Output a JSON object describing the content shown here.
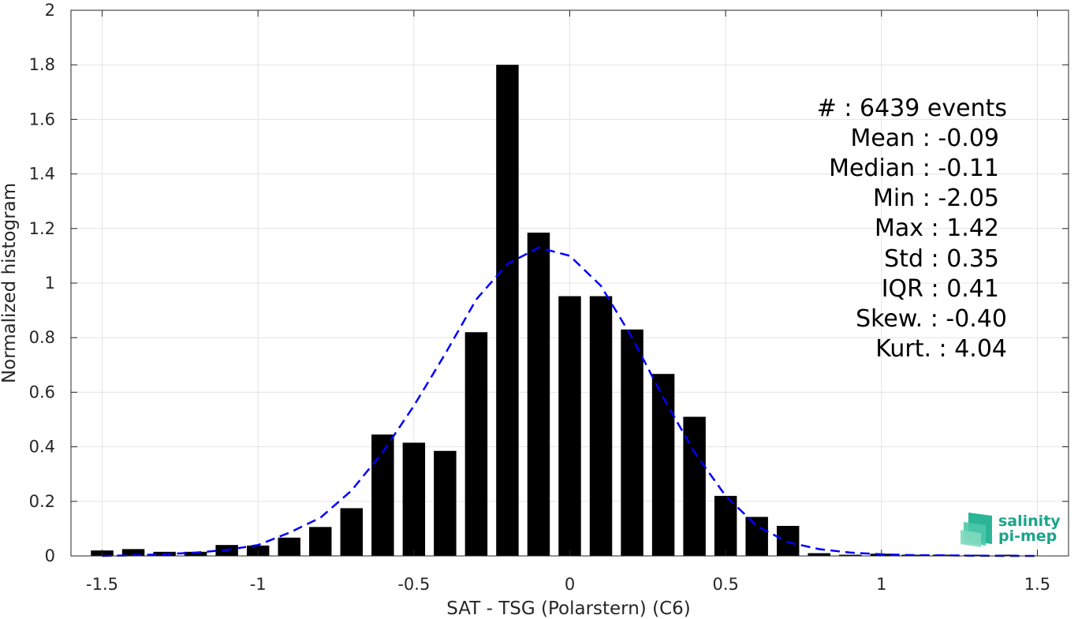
{
  "chart_data": {
    "type": "bar",
    "xlabel": "SAT - TSG (Polarstern) (C6)",
    "ylabel": "Normalized histogram",
    "xlim": [
      -1.6,
      1.6
    ],
    "ylim": [
      0,
      2
    ],
    "grid": true,
    "bar_color": "#000000",
    "fit_color": "#0000ff",
    "x_ticks": [
      -1.5,
      -1,
      -0.5,
      0,
      0.5,
      1,
      1.5
    ],
    "x_tick_labels": [
      "-1.5",
      "-1",
      "-0.5",
      "0",
      "0.5",
      "1",
      "1.5"
    ],
    "y_ticks": [
      0,
      0.2,
      0.4,
      0.6,
      0.8,
      1,
      1.2,
      1.4,
      1.6,
      1.8,
      2
    ],
    "y_tick_labels": [
      "0",
      "0.2",
      "0.4",
      "0.6",
      "0.8",
      "1",
      "1.2",
      "1.4",
      "1.6",
      "1.8",
      "2"
    ],
    "bin_width": 0.1,
    "series": [
      {
        "type": "bar",
        "x": [
          -1.5,
          -1.4,
          -1.3,
          -1.2,
          -1.1,
          -1.0,
          -0.9,
          -0.8,
          -0.7,
          -0.6,
          -0.5,
          -0.4,
          -0.3,
          -0.2,
          -0.1,
          0.0,
          0.1,
          0.2,
          0.3,
          0.4,
          0.5,
          0.6,
          0.7,
          0.8,
          0.9,
          1.0,
          1.1,
          1.2,
          1.3,
          1.4,
          1.5
        ],
        "values": [
          0.02,
          0.025,
          0.015,
          0.015,
          0.04,
          0.038,
          0.067,
          0.106,
          0.175,
          0.445,
          0.415,
          0.385,
          0.82,
          1.8,
          1.185,
          0.952,
          0.952,
          0.83,
          0.667,
          0.51,
          0.22,
          0.143,
          0.11,
          0.01,
          0.003,
          0.008,
          0.003,
          0.002,
          0.001,
          0.001,
          0.0
        ]
      },
      {
        "type": "line",
        "style": "dashed",
        "x": [
          -1.5,
          -1.4,
          -1.3,
          -1.2,
          -1.1,
          -1.0,
          -0.9,
          -0.8,
          -0.7,
          -0.6,
          -0.5,
          -0.4,
          -0.3,
          -0.2,
          -0.1,
          0.0,
          0.1,
          0.2,
          0.3,
          0.4,
          0.5,
          0.6,
          0.7,
          0.8,
          0.9,
          1.0,
          1.1,
          1.2,
          1.3,
          1.4,
          1.5
        ],
        "values": [
          0.0,
          0.002,
          0.006,
          0.012,
          0.022,
          0.04,
          0.085,
          0.14,
          0.24,
          0.38,
          0.55,
          0.74,
          0.94,
          1.07,
          1.13,
          1.1,
          0.99,
          0.8,
          0.58,
          0.38,
          0.22,
          0.11,
          0.05,
          0.025,
          0.012,
          0.006,
          0.003,
          0.002,
          0.001,
          0.0,
          0.0
        ]
      }
    ]
  },
  "stats": [
    "#  : 6439 events",
    "Mean : -0.09",
    "Median : -0.11",
    "Min : -2.05",
    "Max : 1.42",
    "Std : 0.35",
    "IQR : 0.41",
    "Skew. : -0.40",
    "Kurt. : 4.04"
  ],
  "logo": {
    "line1": "salinity",
    "line2": "pi-mep",
    "color": "#1aa58a"
  }
}
